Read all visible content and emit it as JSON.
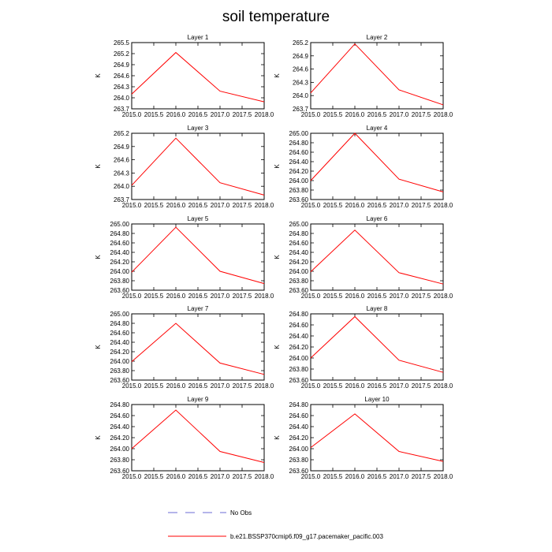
{
  "title": "soil temperature",
  "legend": [
    {
      "label": "No Obs",
      "style": "dashed",
      "color": "#6b6bd6"
    },
    {
      "label": "b.e21.BSSP370cmip6.f09_g17.pacemaker_pacific.003",
      "style": "solid",
      "color": "#ff0000"
    }
  ],
  "chart_data": [
    {
      "type": "line",
      "title": "Layer 1",
      "ylabel": "K",
      "x": [
        2015,
        2016,
        2017,
        2018
      ],
      "xlim": [
        2015,
        2018
      ],
      "xticks": [
        "2015.0",
        "2015.5",
        "2016.0",
        "2016.5",
        "2017.0",
        "2017.5",
        "2018.0"
      ],
      "ylim": [
        263.7,
        265.5
      ],
      "yticks": [
        "263.7",
        "264.0",
        "264.3",
        "264.6",
        "264.9",
        "265.2",
        "265.5"
      ],
      "series": [
        {
          "values": [
            264.1,
            265.23,
            264.18,
            263.89
          ],
          "color": "#ff0000"
        }
      ]
    },
    {
      "type": "line",
      "title": "Layer 2",
      "ylabel": "K",
      "x": [
        2015,
        2016,
        2017,
        2018
      ],
      "xlim": [
        2015,
        2018
      ],
      "xticks": [
        "2015.0",
        "2015.5",
        "2016.0",
        "2016.5",
        "2017.0",
        "2017.5",
        "2018.0"
      ],
      "ylim": [
        263.7,
        265.2
      ],
      "yticks": [
        "263.7",
        "264.0",
        "264.3",
        "264.6",
        "264.9",
        "265.2"
      ],
      "series": [
        {
          "values": [
            264.06,
            265.17,
            264.13,
            263.79
          ],
          "color": "#ff0000"
        }
      ]
    },
    {
      "type": "line",
      "title": "Layer 3",
      "ylabel": "K",
      "x": [
        2015,
        2016,
        2017,
        2018
      ],
      "xlim": [
        2015,
        2018
      ],
      "xticks": [
        "2015.0",
        "2015.5",
        "2016.0",
        "2016.5",
        "2017.0",
        "2017.5",
        "2018.0"
      ],
      "ylim": [
        263.7,
        265.2
      ],
      "yticks": [
        "263.7",
        "264.0",
        "264.3",
        "264.6",
        "264.9",
        "265.2"
      ],
      "series": [
        {
          "values": [
            264.02,
            265.09,
            264.08,
            263.8
          ],
          "color": "#ff0000"
        }
      ]
    },
    {
      "type": "line",
      "title": "Layer 4",
      "ylabel": "K",
      "x": [
        2015,
        2016,
        2017,
        2018
      ],
      "xlim": [
        2015,
        2018
      ],
      "xticks": [
        "2015.0",
        "2015.5",
        "2016.0",
        "2016.5",
        "2017.0",
        "2017.5",
        "2018.0"
      ],
      "ylim": [
        263.6,
        265.0
      ],
      "yticks": [
        "263.60",
        "263.80",
        "264.00",
        "264.20",
        "264.40",
        "264.60",
        "264.80",
        "265.00"
      ],
      "series": [
        {
          "values": [
            264.0,
            265.0,
            264.03,
            263.76
          ],
          "color": "#ff0000"
        }
      ]
    },
    {
      "type": "line",
      "title": "Layer 5",
      "ylabel": "K",
      "x": [
        2015,
        2016,
        2017,
        2018
      ],
      "xlim": [
        2015,
        2018
      ],
      "xticks": [
        "2015.0",
        "2015.5",
        "2016.0",
        "2016.5",
        "2017.0",
        "2017.5",
        "2018.0"
      ],
      "ylim": [
        263.6,
        265.0
      ],
      "yticks": [
        "263.60",
        "263.80",
        "264.00",
        "264.20",
        "264.40",
        "264.60",
        "264.80",
        "265.00"
      ],
      "series": [
        {
          "values": [
            263.98,
            264.93,
            264.0,
            263.74
          ],
          "color": "#ff0000"
        }
      ]
    },
    {
      "type": "line",
      "title": "Layer 6",
      "ylabel": "K",
      "x": [
        2015,
        2016,
        2017,
        2018
      ],
      "xlim": [
        2015,
        2018
      ],
      "xticks": [
        "2015.0",
        "2015.5",
        "2016.0",
        "2016.5",
        "2017.0",
        "2017.5",
        "2018.0"
      ],
      "ylim": [
        263.6,
        265.0
      ],
      "yticks": [
        "263.60",
        "263.80",
        "264.00",
        "264.20",
        "264.40",
        "264.60",
        "264.80",
        "265.00"
      ],
      "series": [
        {
          "values": [
            263.99,
            264.87,
            263.97,
            263.73
          ],
          "color": "#ff0000"
        }
      ]
    },
    {
      "type": "line",
      "title": "Layer 7",
      "ylabel": "K",
      "x": [
        2015,
        2016,
        2017,
        2018
      ],
      "xlim": [
        2015,
        2018
      ],
      "xticks": [
        "2015.0",
        "2015.5",
        "2016.0",
        "2016.5",
        "2017.0",
        "2017.5",
        "2018.0"
      ],
      "ylim": [
        263.6,
        265.0
      ],
      "yticks": [
        "263.60",
        "263.80",
        "264.00",
        "264.20",
        "264.40",
        "264.60",
        "264.80",
        "265.00"
      ],
      "series": [
        {
          "values": [
            263.99,
            264.8,
            263.96,
            263.72
          ],
          "color": "#ff0000"
        }
      ]
    },
    {
      "type": "line",
      "title": "Layer 8",
      "ylabel": "K",
      "x": [
        2015,
        2016,
        2017,
        2018
      ],
      "xlim": [
        2015,
        2018
      ],
      "xticks": [
        "2015.0",
        "2015.5",
        "2016.0",
        "2016.5",
        "2017.0",
        "2017.5",
        "2018.0"
      ],
      "ylim": [
        263.6,
        264.8
      ],
      "yticks": [
        "263.60",
        "263.80",
        "264.00",
        "264.20",
        "264.40",
        "264.60",
        "264.80"
      ],
      "series": [
        {
          "values": [
            264.0,
            264.75,
            263.96,
            263.74
          ],
          "color": "#ff0000"
        }
      ]
    },
    {
      "type": "line",
      "title": "Layer 9",
      "ylabel": "K",
      "x": [
        2015,
        2016,
        2017,
        2018
      ],
      "xlim": [
        2015,
        2018
      ],
      "xticks": [
        "2015.0",
        "2015.5",
        "2016.0",
        "2016.5",
        "2017.0",
        "2017.5",
        "2018.0"
      ],
      "ylim": [
        263.6,
        264.8
      ],
      "yticks": [
        "263.60",
        "263.80",
        "264.00",
        "264.20",
        "264.40",
        "264.60",
        "264.80"
      ],
      "series": [
        {
          "values": [
            264.0,
            264.7,
            263.95,
            263.75
          ],
          "color": "#ff0000"
        }
      ]
    },
    {
      "type": "line",
      "title": "Layer 10",
      "ylabel": "K",
      "x": [
        2015,
        2016,
        2017,
        2018
      ],
      "xlim": [
        2015,
        2018
      ],
      "xticks": [
        "2015.0",
        "2015.5",
        "2016.0",
        "2016.5",
        "2017.0",
        "2017.5",
        "2018.0"
      ],
      "ylim": [
        263.6,
        264.8
      ],
      "yticks": [
        "263.60",
        "263.80",
        "264.00",
        "264.20",
        "264.40",
        "264.60",
        "264.80"
      ],
      "series": [
        {
          "values": [
            264.02,
            264.63,
            263.95,
            263.77
          ],
          "color": "#ff0000"
        }
      ]
    }
  ]
}
